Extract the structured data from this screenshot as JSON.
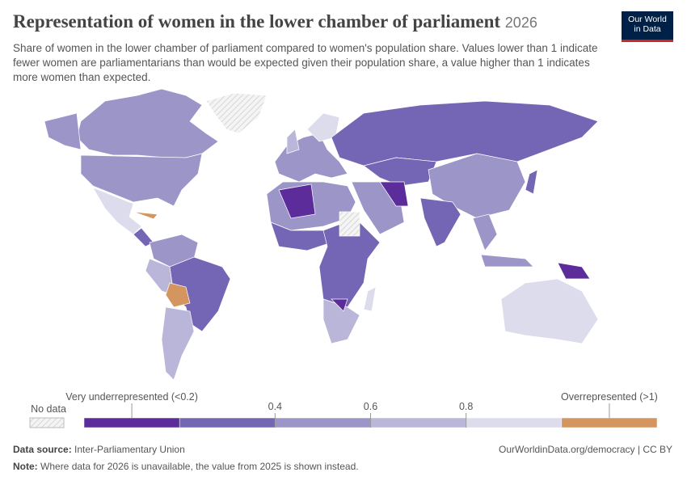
{
  "header": {
    "title": "Representation of women in the lower chamber of parliament",
    "year": "2026",
    "subtitle": "Share of women in the lower chamber of parliament compared to women's population share. Values lower than 1 indicate fewer women are parliamentarians than would be expected given their population share, a value higher than 1 indicates more women than expected.",
    "logo": [
      "Our World",
      "in Data"
    ]
  },
  "legend": {
    "no_data": "No data",
    "bins": [
      {
        "color": "#5b2c9a",
        "label": "Very underrepresented (<0.2)"
      },
      {
        "color": "#7565b5"
      },
      {
        "color": "#9b95c8"
      },
      {
        "color": "#b9b6d9"
      },
      {
        "color": "#dcdcec"
      },
      {
        "color": "#d4955e",
        "label": "Overrepresented (>1)"
      }
    ],
    "ticks": [
      0.4,
      0.6,
      0.8
    ]
  },
  "footer": {
    "source_label": "Data source:",
    "source": "Inter-Parliamentary Union",
    "url": "OurWorldinData.org/democracy | CC BY",
    "note_label": "Note:",
    "note": "Where data for 2026 is unavailable, the value from 2025 is shown instead."
  }
}
